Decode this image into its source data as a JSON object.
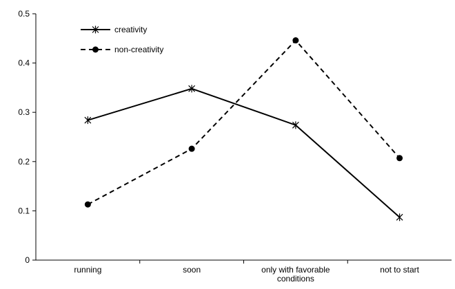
{
  "chart_data": {
    "type": "line",
    "categories": [
      "running",
      "soon",
      "only with favorable conditions",
      "not to start"
    ],
    "category_lines": [
      [
        "running"
      ],
      [
        "soon"
      ],
      [
        "only with favorable",
        "conditions"
      ],
      [
        "not to start"
      ]
    ],
    "ylim": [
      0,
      0.5
    ],
    "yticks": [
      "0",
      "0.1",
      "0.2",
      "0.3",
      "0.4",
      "0.5"
    ],
    "ytick_values": [
      0,
      0.1,
      0.2,
      0.3,
      0.4,
      0.5
    ],
    "grid": false,
    "legend_position": "top-left",
    "series": [
      {
        "name": "creativity",
        "values": [
          0.284,
          0.348,
          0.274,
          0.087
        ],
        "marker": "asterisk",
        "line_style": "solid",
        "color": "#000000"
      },
      {
        "name": "non-creativity",
        "values": [
          0.113,
          0.226,
          0.446,
          0.207
        ],
        "marker": "circle",
        "line_style": "dashed",
        "color": "#000000"
      }
    ]
  }
}
